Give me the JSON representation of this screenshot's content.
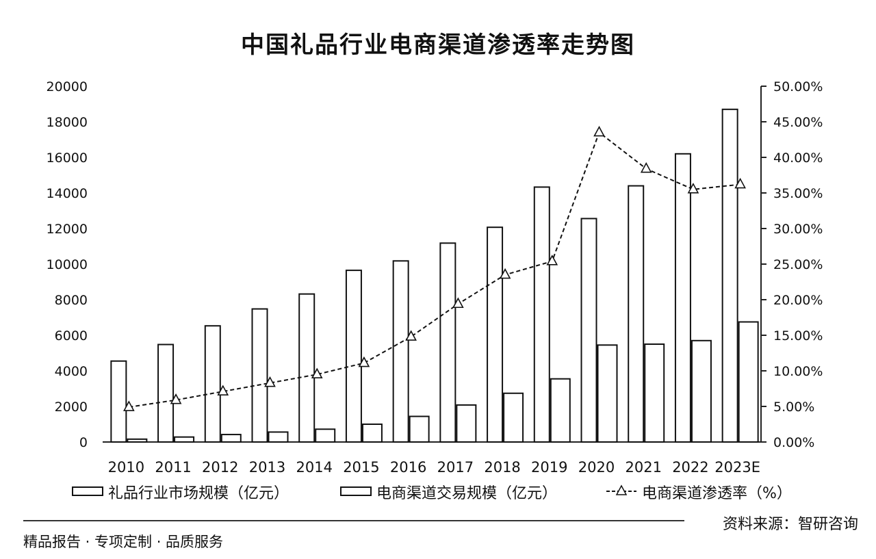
{
  "chart_data": {
    "type": "bar",
    "title": "中国礼品行业电商渠道渗透率走势图",
    "categories": [
      "2010",
      "2011",
      "2012",
      "2013",
      "2014",
      "2015",
      "2016",
      "2017",
      "2018",
      "2019",
      "2020",
      "2021",
      "2022",
      "2023E"
    ],
    "series": [
      {
        "name": "礼品行业市场规模（亿元）",
        "type": "bar",
        "axis": "left",
        "values": [
          4550,
          5480,
          6530,
          7480,
          8320,
          9650,
          10180,
          11180,
          12070,
          14330,
          12560,
          14400,
          16200,
          18700
        ]
      },
      {
        "name": "电商渠道交易规模（亿元）",
        "type": "bar",
        "axis": "left",
        "values": [
          160,
          280,
          420,
          560,
          720,
          1000,
          1440,
          2080,
          2740,
          3550,
          5450,
          5500,
          5700,
          6750
        ]
      },
      {
        "name": "电商渠道渗透率（%）",
        "type": "line",
        "axis": "right",
        "marker": "triangle",
        "values": [
          4.9,
          5.9,
          7.1,
          8.3,
          9.5,
          11.1,
          14.8,
          19.4,
          23.5,
          25.4,
          43.5,
          38.4,
          35.5,
          36.2
        ]
      }
    ],
    "ylim_left": [
      0,
      20000
    ],
    "yticks_left": [
      "0",
      "2000",
      "4000",
      "6000",
      "8000",
      "10000",
      "12000",
      "14000",
      "16000",
      "18000",
      "20000"
    ],
    "ylim_right": [
      0,
      50
    ],
    "yticks_right": [
      "0.00%",
      "5.00%",
      "10.00%",
      "15.00%",
      "20.00%",
      "25.00%",
      "30.00%",
      "35.00%",
      "40.00%",
      "45.00%",
      "50.00%"
    ],
    "legend_position": "bottom",
    "grid": false
  },
  "source": "资料来源：智研咨询",
  "footer": "精品报告 · 专项定制 · 品质服务"
}
